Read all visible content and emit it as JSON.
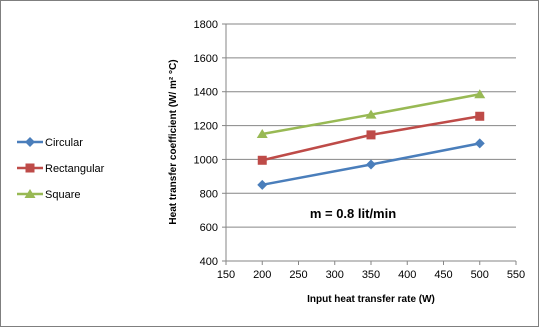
{
  "chart_data": {
    "type": "line",
    "xlabel": "Input heat transfer rate (W)",
    "ylabel": "Heat transfer coefficient   (W/ m² °C)",
    "x": [
      200,
      350,
      500
    ],
    "xlim": [
      150,
      550
    ],
    "ylim": [
      400,
      1800
    ],
    "xticks": [
      150,
      200,
      250,
      300,
      350,
      400,
      450,
      500,
      550
    ],
    "yticks": [
      400,
      600,
      800,
      1000,
      1200,
      1400,
      1600,
      1800
    ],
    "grid": "horizontal",
    "legend_position": "left",
    "annotation": "m = 0.8 lit/min",
    "series": [
      {
        "name": "Circular",
        "values": [
          850,
          970,
          1095
        ],
        "color": "#4a7ebb",
        "marker": "diamond"
      },
      {
        "name": "Rectangular",
        "values": [
          995,
          1145,
          1255
        ],
        "color": "#be4b48",
        "marker": "square"
      },
      {
        "name": "Square",
        "values": [
          1150,
          1265,
          1385
        ],
        "color": "#98b954",
        "marker": "triangle"
      }
    ]
  }
}
